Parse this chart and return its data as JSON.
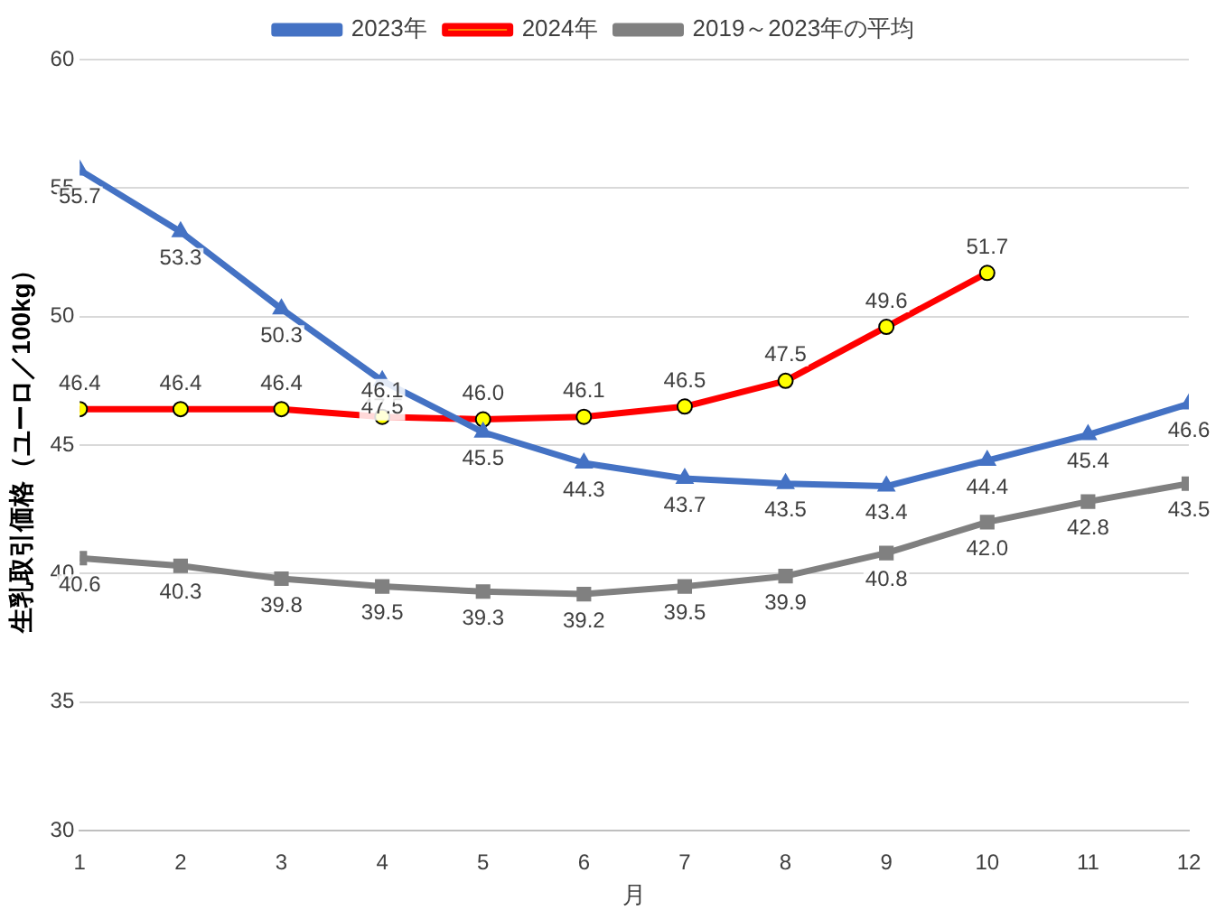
{
  "chart_data": {
    "type": "line",
    "xlabel": "月",
    "ylabel": "生乳取引価格（ユーロ／100kg）",
    "x": [
      1,
      2,
      3,
      4,
      5,
      6,
      7,
      8,
      9,
      10,
      11,
      12
    ],
    "series": [
      {
        "name": "2023年",
        "color": "#4472c4",
        "marker": "triangle",
        "values": [
          55.7,
          53.3,
          50.3,
          47.5,
          45.5,
          44.3,
          43.7,
          43.5,
          43.4,
          44.4,
          45.4,
          46.6
        ],
        "value_labels": [
          "55.7",
          "53.3",
          "50.3",
          "47.5",
          "45.5",
          "44.3",
          "43.7",
          "43.5",
          "43.4",
          "44.4",
          "45.4",
          "46.6"
        ]
      },
      {
        "name": "2024年",
        "color": "#ff0000",
        "marker": "circle",
        "values": [
          46.4,
          46.4,
          46.4,
          46.1,
          46.0,
          46.1,
          46.5,
          47.5,
          49.6,
          51.7,
          null,
          null
        ],
        "value_labels": [
          "46.4",
          "46.4",
          "46.4",
          "46.1",
          "46.0",
          "46.1",
          "46.5",
          "47.5",
          "49.6",
          "51.7",
          null,
          null
        ]
      },
      {
        "name": "2019～2023年の平均",
        "color": "#808080",
        "marker": "square",
        "values": [
          40.6,
          40.3,
          39.8,
          39.5,
          39.3,
          39.2,
          39.5,
          39.9,
          40.8,
          42.0,
          42.8,
          43.5
        ],
        "value_labels": [
          "40.6",
          "40.3",
          "39.8",
          "39.5",
          "39.3",
          "39.2",
          "39.5",
          "39.9",
          "40.8",
          "42.0",
          "42.8",
          "43.5"
        ]
      }
    ],
    "xlim": [
      1,
      12
    ],
    "xticks": [
      1,
      2,
      3,
      4,
      5,
      6,
      7,
      8,
      9,
      10,
      11,
      12
    ],
    "ylim": [
      30,
      60
    ],
    "yticks": [
      30,
      35,
      40,
      45,
      50,
      55,
      60
    ],
    "grid": "y",
    "legend": "top"
  }
}
